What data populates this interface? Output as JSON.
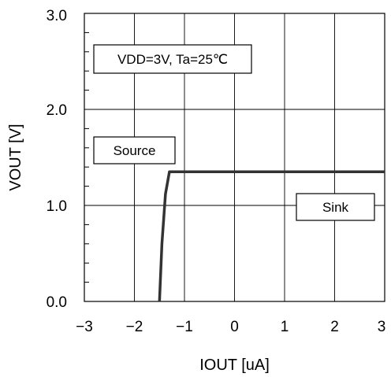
{
  "chart_data": {
    "type": "line",
    "xlabel": "IOUT [uA]",
    "ylabel": "VOUT [V]",
    "xlim": [
      -3,
      3
    ],
    "ylim": [
      0,
      3
    ],
    "x_ticks": [
      "−3",
      "−2",
      "−1",
      "0",
      "1",
      "2",
      "3"
    ],
    "y_ticks": [
      "0.0",
      "1.0",
      "2.0",
      "3.0"
    ],
    "grid": true,
    "series": [
      {
        "x": [
          -1.5,
          -1.45,
          -1.38,
          -1.3,
          3
        ],
        "y": [
          0.0,
          0.6,
          1.12,
          1.35,
          1.35
        ],
        "color": "#333333"
      }
    ],
    "annotations": {
      "conditions": "VDD=3V, Ta=25℃",
      "source": "Source",
      "sink": "Sink"
    }
  }
}
